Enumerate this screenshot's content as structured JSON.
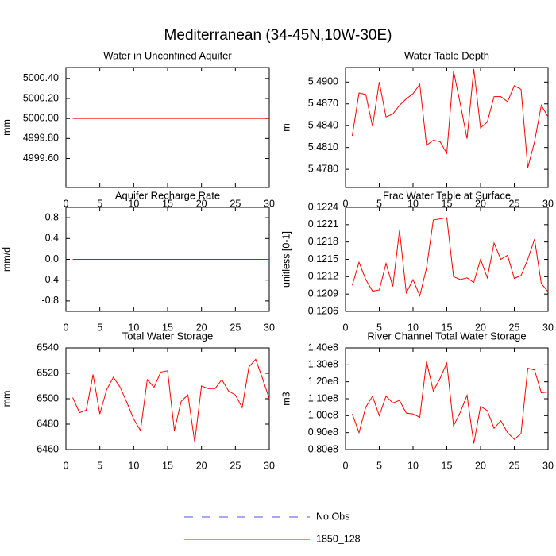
{
  "title": "Mediterranean (34-45N,10W-30E)",
  "legend": [
    {
      "name": "No Obs",
      "color": "#5050e0",
      "dash": true
    },
    {
      "name": "1850_128",
      "color": "#ff0000",
      "dash": false
    }
  ],
  "chart_data": [
    {
      "type": "line",
      "title": "Water in Unconfined Aquifer",
      "ylabel": "mm",
      "x": [
        1,
        2,
        3,
        4,
        5,
        6,
        7,
        8,
        9,
        10,
        11,
        12,
        13,
        14,
        15,
        16,
        17,
        18,
        19,
        20,
        21,
        22,
        23,
        24,
        25,
        26,
        27,
        28,
        29,
        30
      ],
      "xlim": [
        0,
        30
      ],
      "xticks": [
        0,
        5,
        10,
        15,
        20,
        25,
        30
      ],
      "ylim": [
        4999.31,
        5000.51
      ],
      "yticks": [
        {
          "value": 4999.6,
          "label": "4999.60"
        },
        {
          "value": 4999.8,
          "label": "4999.80"
        },
        {
          "value": 5000,
          "label": "5000.00"
        },
        {
          "value": 5000.2,
          "label": "5000.20"
        },
        {
          "value": 5000.4,
          "label": "5000.40"
        }
      ],
      "series": [
        {
          "color": "#ff0000",
          "values": [
            5000,
            5000,
            5000,
            5000,
            5000,
            5000,
            5000,
            5000,
            5000,
            5000,
            5000,
            5000,
            5000,
            5000,
            5000,
            5000,
            5000,
            5000,
            5000,
            5000,
            5000,
            5000,
            5000,
            5000,
            5000,
            5000,
            5000,
            5000,
            5000,
            5000
          ]
        }
      ]
    },
    {
      "type": "line",
      "title": "Water Table Depth",
      "ylabel": "m",
      "x": [
        1,
        2,
        3,
        4,
        5,
        6,
        7,
        8,
        9,
        10,
        11,
        12,
        13,
        14,
        15,
        16,
        17,
        18,
        19,
        20,
        21,
        22,
        23,
        24,
        25,
        26,
        27,
        28,
        29,
        30
      ],
      "xlim": [
        0,
        30
      ],
      "xticks": [
        0,
        5,
        10,
        15,
        20,
        25,
        30
      ],
      "ylim": [
        5.4755,
        5.492
      ],
      "yticks": [
        {
          "value": 5.478,
          "label": "5.4780"
        },
        {
          "value": 5.481,
          "label": "5.4810"
        },
        {
          "value": 5.484,
          "label": "5.4840"
        },
        {
          "value": 5.487,
          "label": "5.4870"
        },
        {
          "value": 5.49,
          "label": "5.4900"
        }
      ],
      "series": [
        {
          "color": "#ff0000",
          "values": [
            5.4826,
            5.4885,
            5.4883,
            5.4839,
            5.49,
            5.4852,
            5.4856,
            5.4868,
            5.4877,
            5.4884,
            5.4897,
            5.4813,
            5.482,
            5.4818,
            5.4802,
            5.4915,
            5.487,
            5.4822,
            5.4918,
            5.4837,
            5.4845,
            5.488,
            5.488,
            5.4873,
            5.4895,
            5.489,
            5.4782,
            5.4818,
            5.4868,
            5.4852
          ]
        }
      ]
    },
    {
      "type": "line",
      "title": "Aquifer Recharge Rate",
      "ylabel": "mm/d",
      "x": [
        1,
        2,
        3,
        4,
        5,
        6,
        7,
        8,
        9,
        10,
        11,
        12,
        13,
        14,
        15,
        16,
        17,
        18,
        19,
        20,
        21,
        22,
        23,
        24,
        25,
        26,
        27,
        28,
        29,
        30
      ],
      "xlim": [
        0,
        30
      ],
      "xticks": [
        0,
        5,
        10,
        15,
        20,
        25,
        30
      ],
      "ylim": [
        -1,
        1
      ],
      "yticks": [
        -0.8,
        -0.4,
        {
          "value": 0,
          "label": "0.0"
        },
        0.4,
        0.8
      ],
      "series": [
        {
          "color": "#ff0000",
          "values": [
            0,
            0,
            0,
            0,
            0,
            0,
            0,
            0,
            0,
            0,
            0,
            0,
            0,
            0,
            0,
            0,
            0,
            0,
            0,
            0,
            0,
            0,
            0,
            0,
            0,
            0,
            0,
            0,
            0,
            0
          ]
        }
      ]
    },
    {
      "type": "line",
      "title": "Frac Water Table at Surface",
      "ylabel": "unitless [0-1]",
      "x": [
        1,
        2,
        3,
        4,
        5,
        6,
        7,
        8,
        9,
        10,
        11,
        12,
        13,
        14,
        15,
        16,
        17,
        18,
        19,
        20,
        21,
        22,
        23,
        24,
        25,
        26,
        27,
        28,
        29,
        30
      ],
      "xlim": [
        0,
        30
      ],
      "xticks": [
        0,
        5,
        10,
        15,
        20,
        25,
        30
      ],
      "ylim": [
        0.1206,
        0.1224
      ],
      "yticks": [
        0.1206,
        0.1209,
        0.1212,
        0.1215,
        0.1218,
        0.1221,
        0.1224
      ],
      "series": [
        {
          "color": "#ff0000",
          "values": [
            0.12105,
            0.12145,
            0.12115,
            0.12095,
            0.12097,
            0.12143,
            0.12103,
            0.122,
            0.12092,
            0.12115,
            0.12087,
            0.12135,
            0.12218,
            0.1222,
            0.12222,
            0.1212,
            0.12115,
            0.12118,
            0.1211,
            0.1215,
            0.12118,
            0.12178,
            0.1215,
            0.12157,
            0.12117,
            0.12122,
            0.1215,
            0.12185,
            0.12108,
            0.12094
          ]
        }
      ]
    },
    {
      "type": "line",
      "title": "Total Water Storage",
      "ylabel": "mm",
      "x": [
        1,
        2,
        3,
        4,
        5,
        6,
        7,
        8,
        9,
        10,
        11,
        12,
        13,
        14,
        15,
        16,
        17,
        18,
        19,
        20,
        21,
        22,
        23,
        24,
        25,
        26,
        27,
        28,
        29,
        30
      ],
      "xlim": [
        0,
        30
      ],
      "xticks": [
        0,
        5,
        10,
        15,
        20,
        25,
        30
      ],
      "ylim": [
        6460,
        6540
      ],
      "yticks": [
        6460,
        6480,
        6500,
        6520,
        6540
      ],
      "series": [
        {
          "color": "#ff0000",
          "values": [
            6501,
            6489,
            6491,
            6519,
            6488,
            6507,
            6517,
            6509,
            6497,
            6484,
            6475,
            6515,
            6509,
            6521,
            6522,
            6475,
            6498,
            6503,
            6466,
            6510,
            6508,
            6508,
            6515,
            6506,
            6503,
            6493,
            6525,
            6531,
            6516,
            6500
          ]
        }
      ]
    },
    {
      "type": "line",
      "title": "River Channel Total Water Storage",
      "ylabel": "m3",
      "x": [
        1,
        2,
        3,
        4,
        5,
        6,
        7,
        8,
        9,
        10,
        11,
        12,
        13,
        14,
        15,
        16,
        17,
        18,
        19,
        20,
        21,
        22,
        23,
        24,
        25,
        26,
        27,
        28,
        29,
        30
      ],
      "xlim": [
        0,
        30
      ],
      "xticks": [
        0,
        5,
        10,
        15,
        20,
        25,
        30
      ],
      "ylim": [
        80000000,
        140000000
      ],
      "yticks": [
        {
          "value": 80000000,
          "label": "0.80e8"
        },
        {
          "value": 90000000,
          "label": "0.90e8"
        },
        {
          "value": 100000000,
          "label": "1.00e8"
        },
        {
          "value": 110000000,
          "label": "1.10e8"
        },
        {
          "value": 120000000,
          "label": "1.20e8"
        },
        {
          "value": 130000000,
          "label": "1.30e8"
        },
        {
          "value": 140000000,
          "label": "1.40e8"
        }
      ],
      "series": [
        {
          "color": "#ff0000",
          "values": [
            101000000,
            90000000,
            105000000,
            111500000,
            100000000,
            111500000,
            107500000,
            109000000,
            101500000,
            101000000,
            99000000,
            132000000,
            114500000,
            122000000,
            131000000,
            94000000,
            102000000,
            112000000,
            83500000,
            105500000,
            103000000,
            92500000,
            97000000,
            90000000,
            86000000,
            89500000,
            128000000,
            127000000,
            113500000,
            114000000
          ]
        }
      ]
    }
  ]
}
